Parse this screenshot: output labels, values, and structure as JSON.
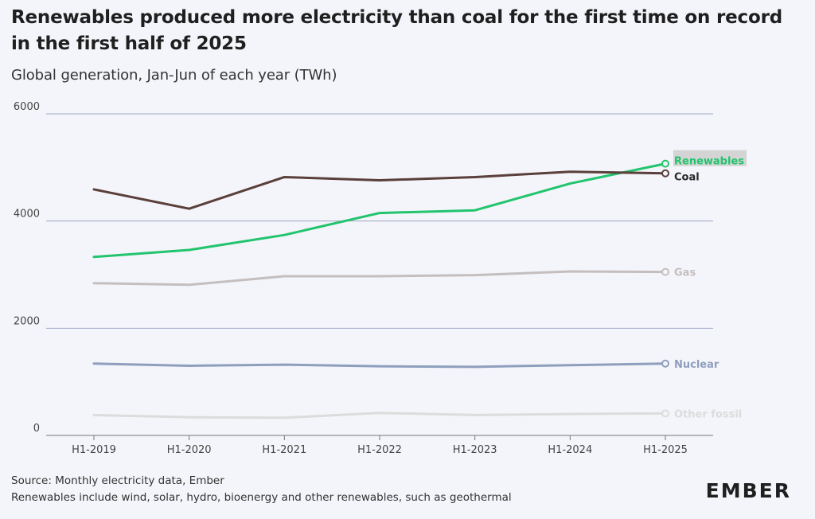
{
  "header": {
    "title": "Renewables produced more electricity than coal for the first time on record in the first half of 2025",
    "subtitle": "Global generation, Jan-Jun of each year (TWh)"
  },
  "footer": {
    "source": "Source: Monthly electricity data, Ember",
    "note": "Renewables include wind, solar, hydro, bioenergy and other renewables, such as geothermal"
  },
  "logo": {
    "text": "EMBER"
  },
  "chart_data": {
    "type": "line",
    "categories": [
      "H1-2019",
      "H1-2020",
      "H1-2021",
      "H1-2022",
      "H1-2023",
      "H1-2024",
      "H1-2025"
    ],
    "ylim": [
      0,
      6000
    ],
    "yticks": [
      0,
      2000,
      4000,
      6000
    ],
    "grid": true,
    "legend": "end-of-line labels",
    "series": [
      {
        "name": "Coal",
        "color": "#5a3f3a",
        "values": [
          4590,
          4230,
          4820,
          4760,
          4820,
          4920,
          4890
        ]
      },
      {
        "name": "Renewables",
        "color": "#22c46d",
        "values": [
          3330,
          3460,
          3740,
          4150,
          4200,
          4700,
          5070
        ]
      },
      {
        "name": "Gas",
        "color": "#c4bebe",
        "values": [
          2840,
          2810,
          2970,
          2970,
          2990,
          3060,
          3050
        ]
      },
      {
        "name": "Nuclear",
        "color": "#8e9fbd",
        "values": [
          1340,
          1300,
          1320,
          1290,
          1280,
          1310,
          1340
        ]
      },
      {
        "name": "Other fossil",
        "color": "#dcdcdc",
        "values": [
          380,
          340,
          330,
          420,
          380,
          400,
          410
        ]
      }
    ]
  }
}
